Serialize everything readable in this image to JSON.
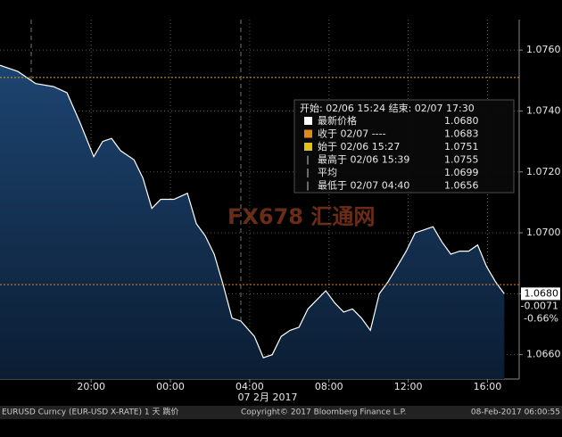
{
  "chart_data": {
    "type": "area",
    "x": [
      15.4,
      16.3,
      17.2,
      18.1,
      18.78,
      19.45,
      20.13,
      20.58,
      21.03,
      21.48,
      22.16,
      22.61,
      23.06,
      23.51,
      24.18,
      24.86,
      25.31,
      25.76,
      26.21,
      26.66,
      27.11,
      27.56,
      28.24,
      28.69,
      29.14,
      29.59,
      30.04,
      30.49,
      30.94,
      31.39,
      31.84,
      32.29,
      32.74,
      33.19,
      33.64,
      34.09,
      34.54,
      34.99,
      35.45,
      35.9,
      36.35,
      36.8,
      37.25,
      37.7,
      38.15,
      38.6,
      39.05,
      39.5,
      39.95,
      40.4,
      40.85
    ],
    "values": [
      1.0755,
      1.0753,
      1.0749,
      1.0748,
      1.0746,
      1.0736,
      1.0725,
      1.073,
      1.0731,
      1.0727,
      1.0724,
      1.0718,
      1.0708,
      1.0711,
      1.0711,
      1.0713,
      1.0703,
      1.0699,
      1.0693,
      1.0683,
      1.0672,
      1.0671,
      1.0666,
      1.0659,
      1.066,
      1.0666,
      1.0668,
      1.0669,
      1.0675,
      1.0678,
      1.0681,
      1.0677,
      1.0674,
      1.0675,
      1.0672,
      1.0668,
      1.068,
      1.0684,
      1.0689,
      1.0694,
      1.07,
      1.0701,
      1.0702,
      1.0697,
      1.0693,
      1.0694,
      1.0694,
      1.0696,
      1.0689,
      1.0684,
      1.068
    ],
    "color": "#ffffff",
    "fill": "#17375a",
    "xlim": [
      15.4,
      41.6
    ],
    "ylim": [
      1.0652,
      1.077
    ],
    "xticks": [
      {
        "value": 20,
        "label": "20:00"
      },
      {
        "value": 24,
        "label": "00:00"
      },
      {
        "value": 28,
        "label": "04:00"
      },
      {
        "value": 32,
        "label": "08:00"
      },
      {
        "value": 36,
        "label": "12:00"
      },
      {
        "value": 40,
        "label": "16:00"
      }
    ],
    "yticks": [
      {
        "value": 1.066,
        "label": "1.0660"
      },
      {
        "value": 1.068,
        "label": "1.0680"
      },
      {
        "value": 1.07,
        "label": "1.0700"
      },
      {
        "value": 1.072,
        "label": "1.0720"
      },
      {
        "value": 1.074,
        "label": "1.0740"
      },
      {
        "value": 1.076,
        "label": "1.0760"
      }
    ],
    "grid": true,
    "reference_lines": [
      {
        "value": 1.0751,
        "color": "#d9a520"
      },
      {
        "value": 1.0683,
        "color": "#d98a20"
      }
    ],
    "x_date_label": "07 2月 2017",
    "last_labels": [
      "1.0680",
      "-0.0071",
      "-0.66%"
    ],
    "watermark": "FX678 汇通网",
    "info_box": {
      "header": "开始: 02/06 15:24 结束: 02/07 17:30",
      "rows": [
        {
          "label": "最新价格",
          "value": "1.0680",
          "color": "#ffffff"
        },
        {
          "label": "收于 02/07 ----",
          "value": "1.0683",
          "color": "#e08a1a"
        },
        {
          "label": "始于 02/06 15:27",
          "value": "1.0751",
          "color": "#e0c020"
        },
        {
          "label": "最高于 02/06 15:39",
          "value": "1.0755",
          "color": null
        },
        {
          "label": "平均",
          "value": "1.0699",
          "color": null
        },
        {
          "label": "最低于 02/07 04:40",
          "value": "1.0656",
          "color": null
        }
      ]
    },
    "footer": [
      "EURUSD Curncy (EUR-USD X-RATE) 1 天  跳价",
      "Copyright© 2017 Bloomberg Finance L.P.",
      "08-Feb-2017 06:00:55"
    ]
  }
}
